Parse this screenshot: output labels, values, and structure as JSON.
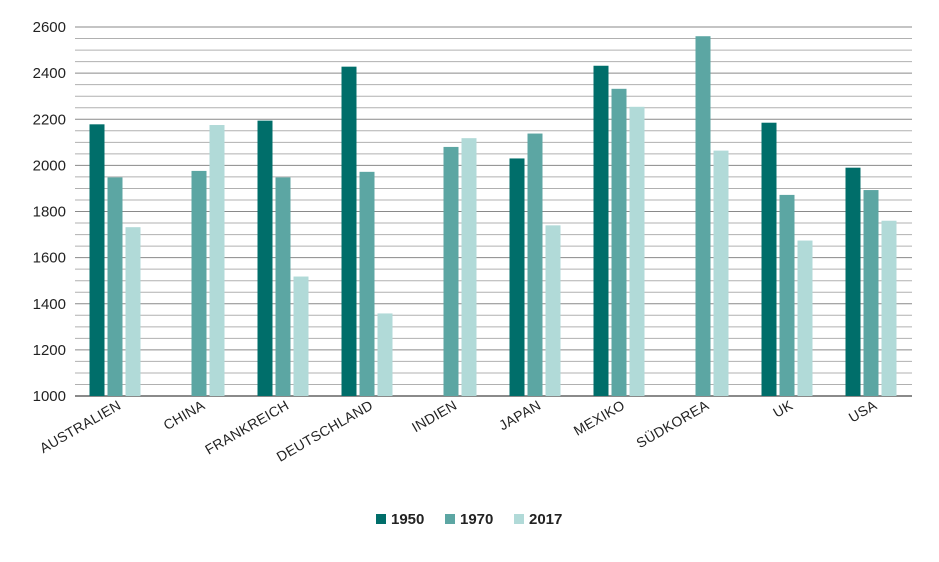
{
  "chart_data": {
    "type": "bar",
    "categories": [
      "AUSTRALIEN",
      "CHINA",
      "FRANKREICH",
      "DEUTSCHLAND",
      "INDIEN",
      "JAPAN",
      "MEXIKO",
      "SÜDKOREA",
      "UK",
      "USA"
    ],
    "series": [
      {
        "name": "1950",
        "color": "#006e6a",
        "values": [
          2178,
          null,
          2194,
          2428,
          null,
          2030,
          2432,
          null,
          2185,
          1990
        ]
      },
      {
        "name": "1970",
        "color": "#5ca6a3",
        "values": [
          1948,
          1976,
          1948,
          1972,
          2080,
          2138,
          2332,
          2560,
          1872,
          1893
        ]
      },
      {
        "name": "2017",
        "color": "#b1dad8",
        "values": [
          1732,
          2175,
          1518,
          1358,
          2118,
          1740,
          2254,
          2064,
          1674,
          1760
        ]
      }
    ],
    "yticks": [
      "1000",
      "1200",
      "1400",
      "1600",
      "1800",
      "2000",
      "2200",
      "2400",
      "2600"
    ],
    "ylim": [
      1000,
      2600
    ],
    "minor_grid_step": 50,
    "grid": true,
    "legend_position": "bottom-center",
    "title": "",
    "xlabel": "",
    "ylabel": ""
  }
}
